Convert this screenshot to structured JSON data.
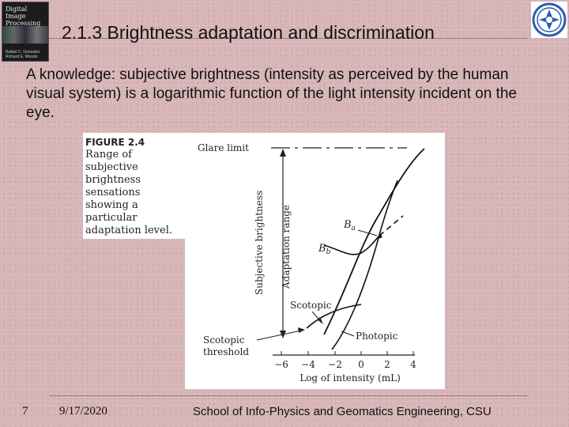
{
  "slide": {
    "title": "2.1.3 Brightness adaptation and discrimination",
    "body": "A knowledge: subjective brightness (intensity as perceived by the human visual system) is a logarithmic function of the light intensity incident on the eye."
  },
  "thumbnail": {
    "title_lines": [
      "Digital",
      "Image",
      "Processing"
    ],
    "authors": "Rafael C. Gonzalez  Richard E. Woods"
  },
  "figure": {
    "number": "FIGURE 2.4",
    "caption": "Range of subjective brightness sensations showing a particular adaptation level.",
    "labels": {
      "glare_limit": "Glare limit",
      "y_axis": "Subjective brightness",
      "adaptation_range": "Adaptation range",
      "ba": "B",
      "ba_sub": "a",
      "bb": "B",
      "bb_sub": "b",
      "scotopic": "Scotopic",
      "photopic": "Photopic",
      "scotopic_threshold_1": "Scotopic",
      "scotopic_threshold_2": "threshold",
      "x_axis": "Log of intensity (mL)"
    },
    "ticks": [
      "−6",
      "−4",
      "−2",
      "0",
      "2",
      "4"
    ]
  },
  "footer": {
    "slide_number": "7",
    "date": "9/17/2020",
    "school": "School of Info-Physics and Geomatics Engineering, CSU"
  }
}
